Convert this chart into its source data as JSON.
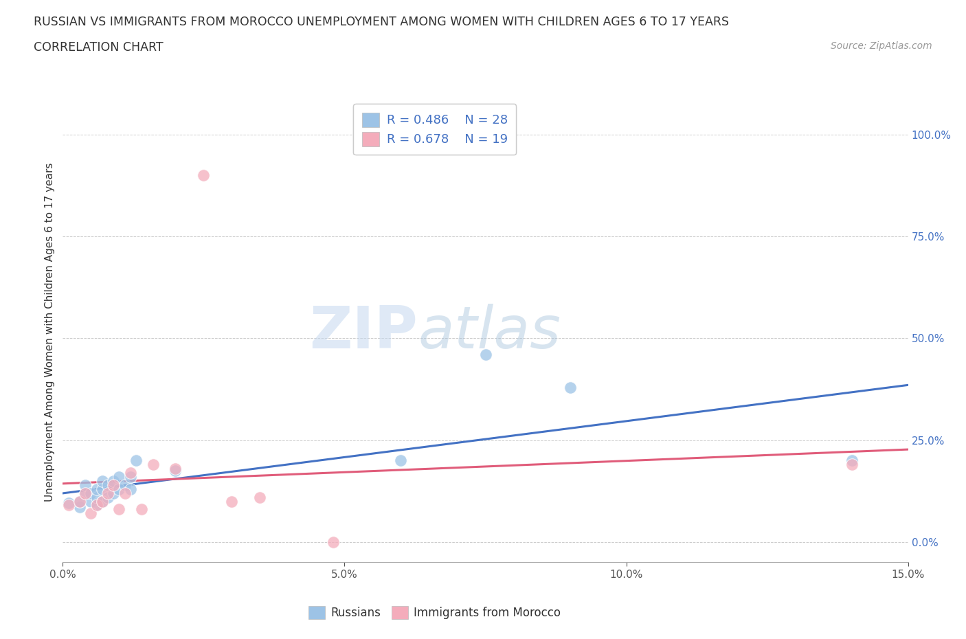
{
  "title_line1": "RUSSIAN VS IMMIGRANTS FROM MOROCCO UNEMPLOYMENT AMONG WOMEN WITH CHILDREN AGES 6 TO 17 YEARS",
  "title_line2": "CORRELATION CHART",
  "source": "Source: ZipAtlas.com",
  "ylabel": "Unemployment Among Women with Children Ages 6 to 17 years",
  "xlim": [
    0.0,
    0.15
  ],
  "ylim": [
    -0.05,
    1.08
  ],
  "ytick_labels": [
    "0.0%",
    "25.0%",
    "50.0%",
    "75.0%",
    "100.0%"
  ],
  "ytick_values": [
    0.0,
    0.25,
    0.5,
    0.75,
    1.0
  ],
  "xtick_labels": [
    "0.0%",
    "5.0%",
    "10.0%",
    "15.0%"
  ],
  "xtick_values": [
    0.0,
    0.05,
    0.1,
    0.15
  ],
  "russians_color": "#9DC3E6",
  "morocco_color": "#F4ACBB",
  "line_russians_color": "#4472C4",
  "line_morocco_color": "#E05C7A",
  "russians_R": 0.486,
  "russians_N": 28,
  "morocco_R": 0.678,
  "morocco_N": 19,
  "legend_label_russians": "Russians",
  "legend_label_morocco": "Immigrants from Morocco",
  "watermark_zip": "ZIP",
  "watermark_atlas": "atlas",
  "russians_x": [
    0.001,
    0.003,
    0.003,
    0.004,
    0.004,
    0.005,
    0.005,
    0.006,
    0.006,
    0.006,
    0.007,
    0.007,
    0.007,
    0.008,
    0.008,
    0.009,
    0.009,
    0.01,
    0.01,
    0.011,
    0.012,
    0.012,
    0.013,
    0.02,
    0.06,
    0.075,
    0.09,
    0.14
  ],
  "russians_y": [
    0.095,
    0.085,
    0.1,
    0.12,
    0.14,
    0.1,
    0.12,
    0.09,
    0.11,
    0.13,
    0.1,
    0.13,
    0.15,
    0.11,
    0.14,
    0.12,
    0.15,
    0.13,
    0.16,
    0.14,
    0.13,
    0.16,
    0.2,
    0.175,
    0.2,
    0.46,
    0.38,
    0.2
  ],
  "morocco_x": [
    0.001,
    0.003,
    0.004,
    0.005,
    0.006,
    0.007,
    0.008,
    0.009,
    0.01,
    0.011,
    0.012,
    0.014,
    0.016,
    0.02,
    0.025,
    0.03,
    0.035,
    0.048,
    0.14
  ],
  "morocco_y": [
    0.09,
    0.1,
    0.12,
    0.07,
    0.09,
    0.1,
    0.12,
    0.14,
    0.08,
    0.12,
    0.17,
    0.08,
    0.19,
    0.18,
    0.9,
    0.1,
    0.11,
    0.0,
    0.19
  ],
  "grid_color": "#cccccc",
  "background_color": "#ffffff",
  "text_color_blue": "#4472C4",
  "text_color_dark": "#333333",
  "text_color_source": "#999999",
  "scatter_size": 160
}
